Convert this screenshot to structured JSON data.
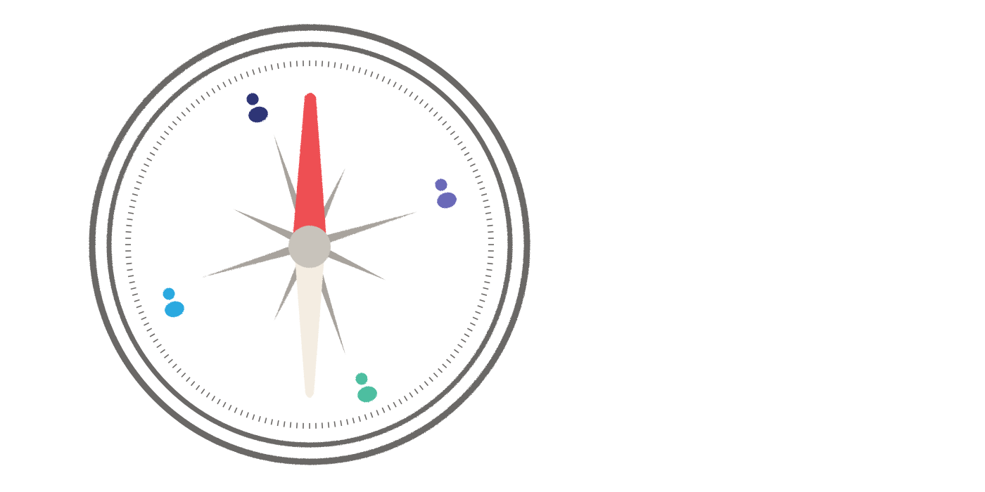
{
  "illustration": {
    "subject": "compass",
    "colors": {
      "background": "#ffffff",
      "ring": "#6b6866",
      "tick": "#6b6866",
      "rose_points": "#a8a39d",
      "needle_north": "#ee4f52",
      "needle_south": "#f4ede2",
      "hub": "#c8c3bb"
    },
    "people": [
      {
        "name": "person-navy-icon",
        "color": "#2e3576"
      },
      {
        "name": "person-purple-icon",
        "color": "#6b69b8"
      },
      {
        "name": "person-sky-icon",
        "color": "#2aa9e0"
      },
      {
        "name": "person-teal-icon",
        "color": "#4dbea0"
      }
    ]
  }
}
